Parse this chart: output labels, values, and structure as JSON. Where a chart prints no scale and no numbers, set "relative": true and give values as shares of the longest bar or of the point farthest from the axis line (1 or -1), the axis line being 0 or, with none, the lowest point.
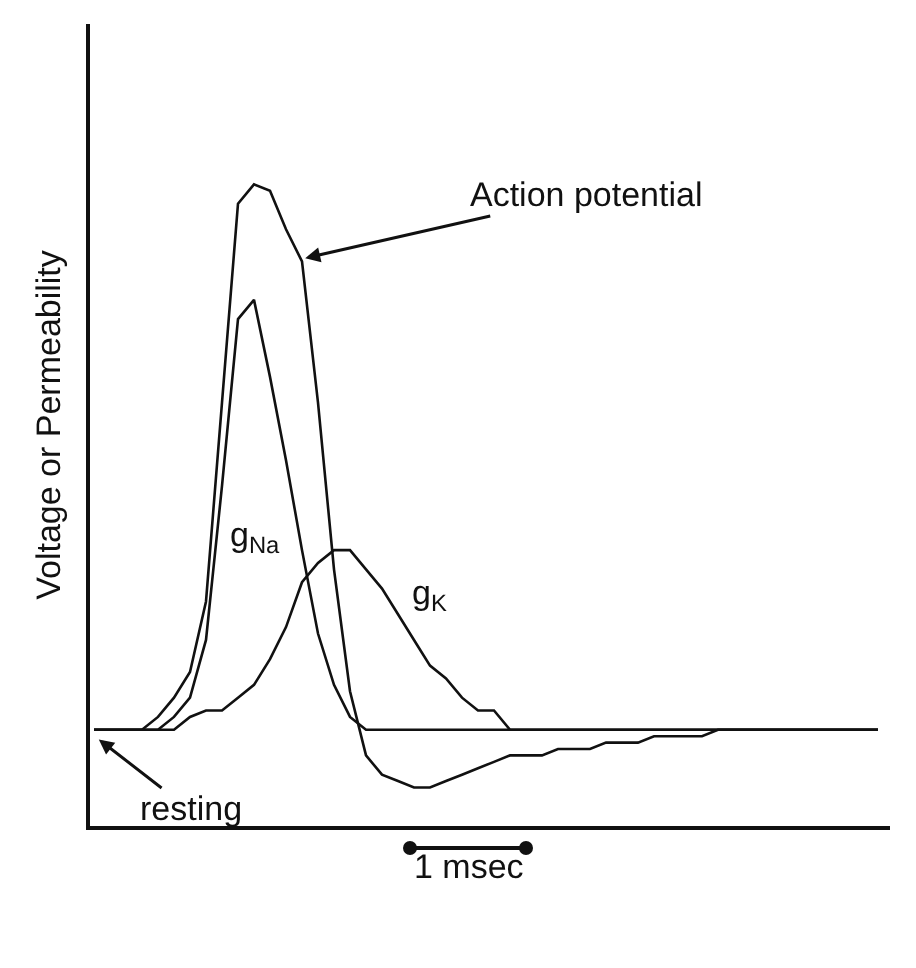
{
  "chart_data": {
    "type": "line",
    "relative": true,
    "legend": false,
    "ylabel": "Voltage or Permeability",
    "annotations": [
      "Action potential",
      "resting",
      "1 msec"
    ],
    "categories": [
      null,
      null,
      null,
      null,
      null,
      null,
      null,
      null,
      null,
      null,
      null,
      null,
      null,
      null,
      null,
      null,
      null,
      null,
      null,
      null,
      null,
      null,
      null,
      null,
      null,
      null,
      null,
      null,
      null,
      null,
      null,
      null,
      null,
      null,
      null,
      null,
      null,
      null,
      null,
      null,
      null,
      null,
      null,
      null,
      null,
      null,
      null,
      null,
      null,
      null
    ],
    "series": [
      {
        "color": "#111111",
        "values": [
          0.15,
          0.15,
          0.15,
          0.15,
          0.17,
          0.2,
          0.24,
          0.35,
          0.66,
          0.97,
          1,
          0.99,
          0.93,
          0.88,
          0.66,
          0.4,
          0.21,
          0.11,
          0.08,
          0.07,
          0.06,
          0.06,
          0.07,
          0.08,
          0.09,
          0.1,
          0.11,
          0.11,
          0.11,
          0.12,
          0.12,
          0.12,
          0.13,
          0.13,
          0.13,
          0.14,
          0.14,
          0.14,
          0.14,
          0.15,
          0.15,
          0.15,
          0.15,
          0.15,
          0.15,
          0.15,
          0.15,
          0.15,
          0.15,
          0.15
        ]
      },
      {
        "name": "g$_{Na}$",
        "color": "#111111",
        "values": [
          0.15,
          0.15,
          0.15,
          0.15,
          0.15,
          0.17,
          0.2,
          0.29,
          0.53,
          0.79,
          0.82,
          0.7,
          0.57,
          0.43,
          0.3,
          0.22,
          0.17,
          0.15,
          0.15,
          0.15,
          0.15,
          0.15,
          0.15,
          0.15,
          0.15,
          0.15,
          0.15,
          0.15,
          0.15,
          0.15,
          0.15,
          0.15,
          0.15,
          0.15,
          0.15,
          0.15,
          0.15,
          0.15,
          0.15,
          0.15,
          0.15,
          0.15,
          0.15,
          0.15,
          0.15,
          0.15,
          0.15,
          0.15,
          0.15,
          0.15
        ]
      },
      {
        "name": "g$_{K}$",
        "color": "#111111",
        "values": [
          0.15,
          0.15,
          0.15,
          0.15,
          0.15,
          0.15,
          0.17,
          0.18,
          0.18,
          0.2,
          0.22,
          0.26,
          0.31,
          0.38,
          0.41,
          0.43,
          0.43,
          0.4,
          0.37,
          0.33,
          0.29,
          0.25,
          0.23,
          0.2,
          0.18,
          0.18,
          0.15,
          0.15,
          0.15,
          0.15,
          0.15,
          0.15,
          0.15,
          0.15,
          0.15,
          0.15,
          0.15,
          0.15,
          0.15,
          0.15,
          0.15,
          0.15,
          0.15,
          0.15,
          0.15,
          0.15,
          0.15,
          0.15,
          0.15,
          0.15
        ]
      }
    ]
  }
}
